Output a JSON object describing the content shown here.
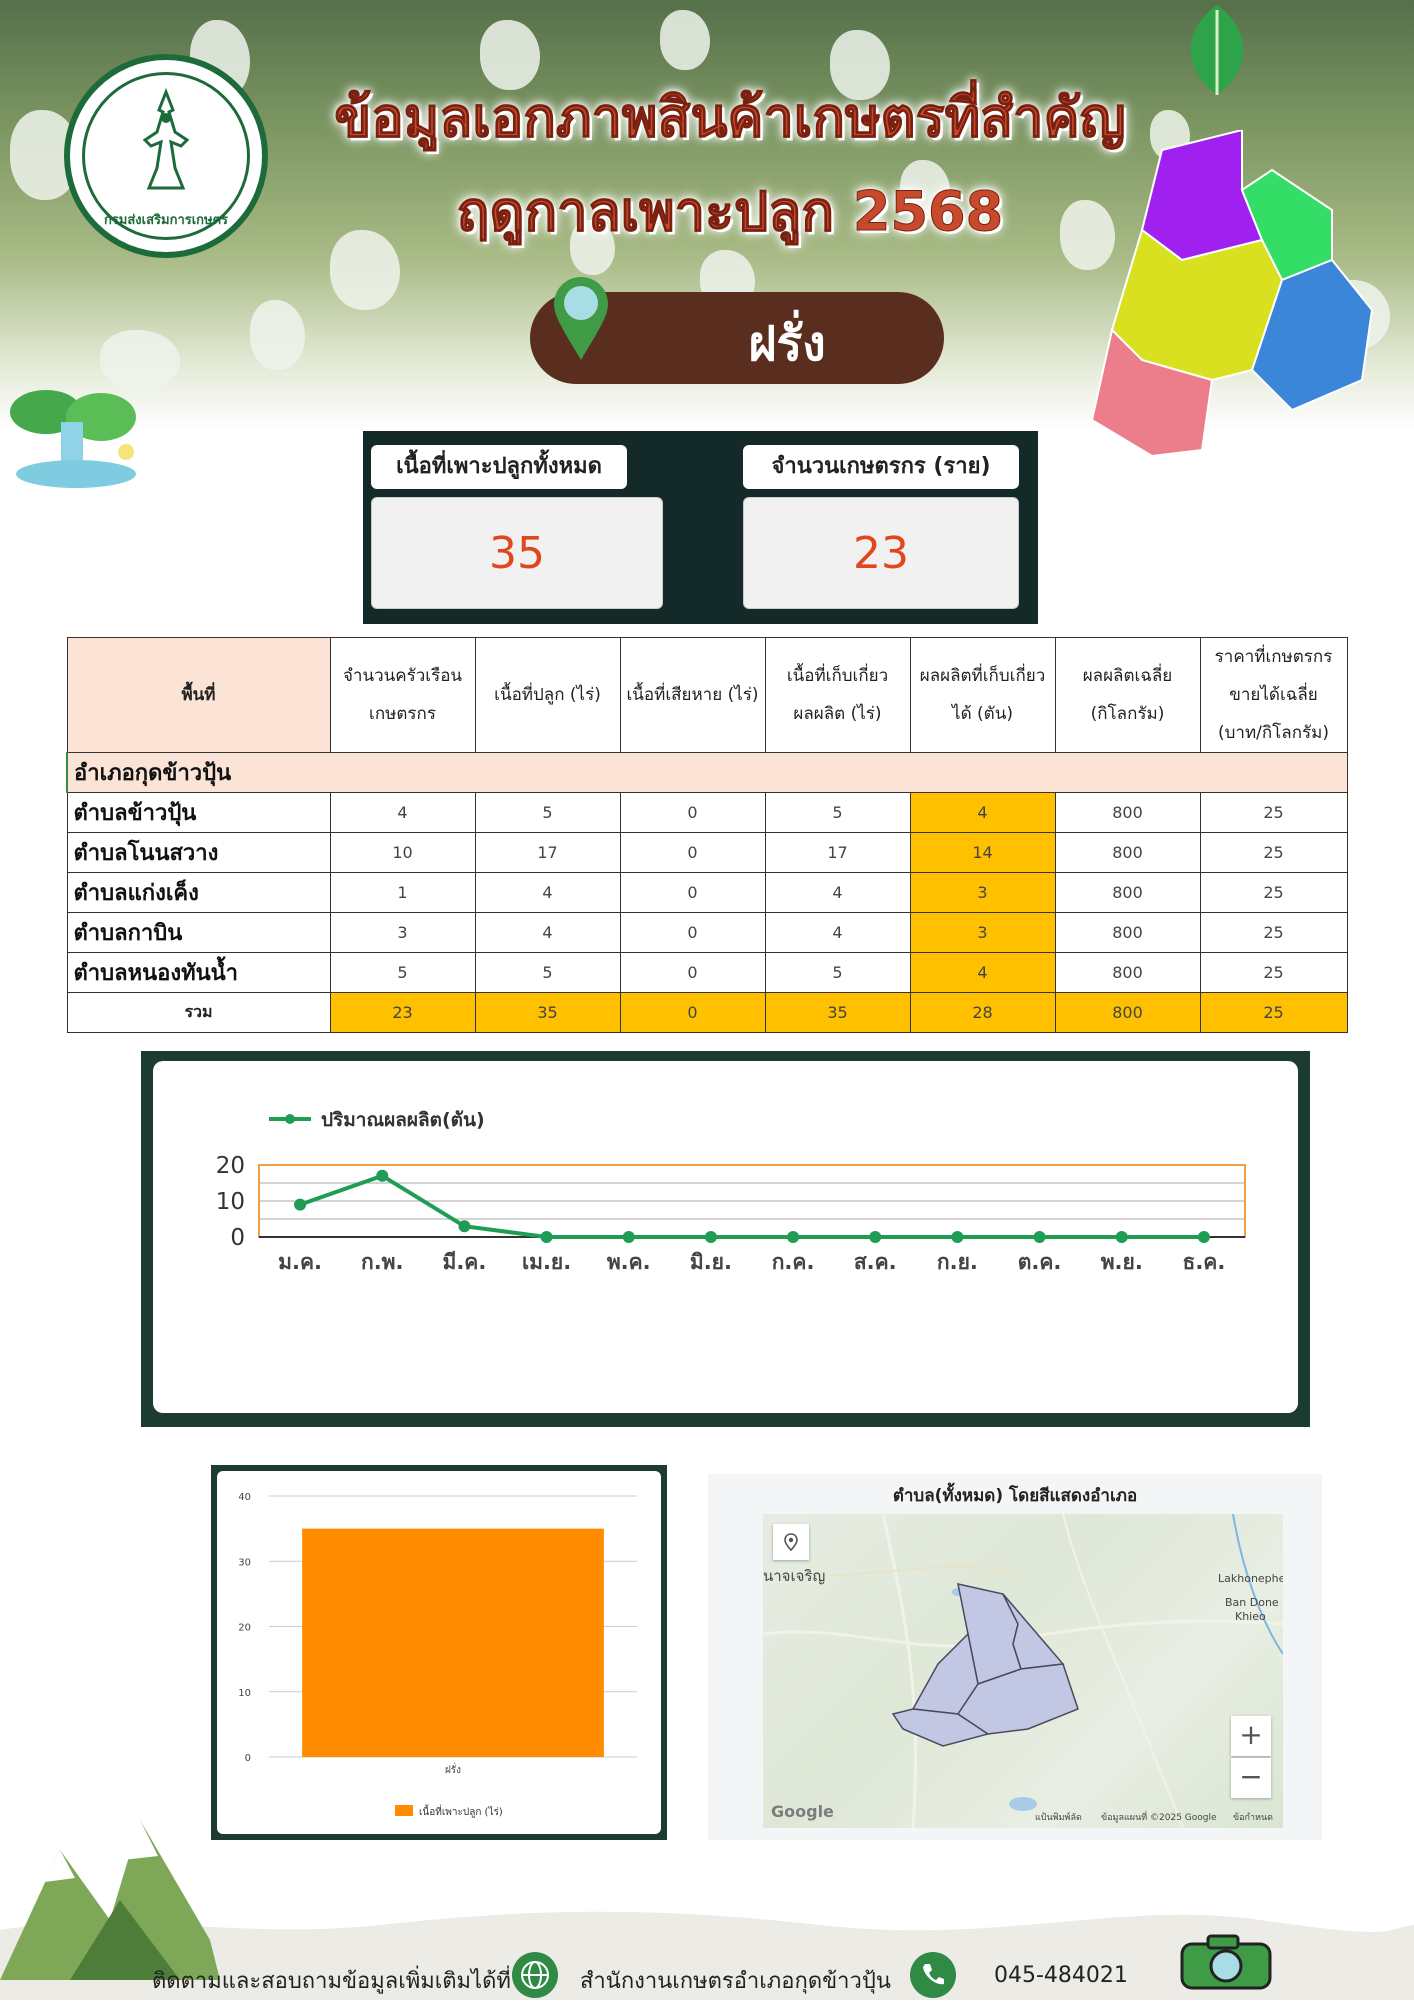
{
  "header": {
    "title_line1": "ข้อมูลเอกภาพสินค้าเกษตรที่สำคัญ",
    "title_line2": "ฤดูกาลเพาะปลูก 2568",
    "crop": "ฝรั่ง",
    "logo_text": "กรมส่งเสริมการเกษตร"
  },
  "stats": {
    "area_label": "เนื้อที่เพาะปลูกทั้งหมด",
    "area_value": "35",
    "farmers_label": "จำนวนเกษตรกร (ราย)",
    "farmers_value": "23"
  },
  "table": {
    "headers": {
      "area": "พื้นที่",
      "households_1": "จำนวนครัวเรือน",
      "households_2": "เกษตรกร",
      "planted": "เนื้อที่ปลูก (ไร่)",
      "damaged": "เนื้อที่เสียหาย (ไร่)",
      "harvest_1": "เนื้อที่เก็บเกี่ยว",
      "harvest_2": "ผลผลิต (ไร่)",
      "yield_1": "ผลผลิตที่เก็บเกี่ยว",
      "yield_2": "ได้ (ตัน)",
      "avg_1": "ผลผลิตเฉลี่ย",
      "avg_2": "(กิโลกรัม)",
      "price_1": "ราคาที่เกษตรกร",
      "price_2": "ขายได้เฉลี่ย",
      "price_3": "(บาท/กิโลกรัม)"
    },
    "district": "อำเภอกุดข้าวปุ้น",
    "rows": [
      {
        "name": "ตำบลข้าวปุ้น",
        "households": "4",
        "planted": "5",
        "damaged": "0",
        "harvest": "5",
        "yield": "4",
        "avg": "800",
        "price": "25"
      },
      {
        "name": "ตำบลโนนสวาง",
        "households": "10",
        "planted": "17",
        "damaged": "0",
        "harvest": "17",
        "yield": "14",
        "avg": "800",
        "price": "25"
      },
      {
        "name": "ตำบลแก่งเค็ง",
        "households": "1",
        "planted": "4",
        "damaged": "0",
        "harvest": "4",
        "yield": "3",
        "avg": "800",
        "price": "25"
      },
      {
        "name": "ตำบลกาบิน",
        "households": "3",
        "planted": "4",
        "damaged": "0",
        "harvest": "4",
        "yield": "3",
        "avg": "800",
        "price": "25"
      },
      {
        "name": "ตำบลหนองทันน้ำ",
        "households": "5",
        "planted": "5",
        "damaged": "0",
        "harvest": "5",
        "yield": "4",
        "avg": "800",
        "price": "25"
      }
    ],
    "total": {
      "name": "รวม",
      "households": "23",
      "planted": "35",
      "damaged": "0",
      "harvest": "35",
      "yield": "28",
      "avg": "800",
      "price": "25"
    }
  },
  "chart_data": [
    {
      "type": "line",
      "series": [
        {
          "name": "ปริมาณผลผลิต(ตัน)",
          "values": [
            9,
            17,
            3,
            0,
            0,
            0,
            0,
            0,
            0,
            0,
            0,
            0
          ]
        }
      ],
      "categories": [
        "ม.ค.",
        "ก.พ.",
        "มี.ค.",
        "เม.ย.",
        "พ.ค.",
        "มิ.ย.",
        "ก.ค.",
        "ส.ค.",
        "ก.ย.",
        "ต.ค.",
        "พ.ย.",
        "ธ.ค."
      ],
      "ylim": [
        0,
        20
      ],
      "yticks": [
        "20",
        "10",
        "0"
      ],
      "legend": "top-left",
      "color": "#1f9d55"
    },
    {
      "type": "bar",
      "categories": [
        "ฝรั่ง"
      ],
      "series": [
        {
          "name": "เนื้อที่เพาะปลูก (ไร่)",
          "values": [
            35
          ]
        }
      ],
      "ylim": [
        0,
        40
      ],
      "yticks": [
        "40",
        "30",
        "20",
        "10",
        "0"
      ],
      "legend": "bottom",
      "color": "#ff8c00"
    }
  ],
  "map": {
    "title": "ตำบล(ทั้งหมด) โดยสีแสดงอำเภอ",
    "labels": {
      "left": "นาจเจริญ",
      "right1": "Lakhonepheng",
      "right2": "Ban Done",
      "right3": "Khieo"
    },
    "zoom_in": "+",
    "zoom_out": "−",
    "google": "Google",
    "attribution_1": "แป้นพิมพ์ลัด",
    "attribution_2": "ข้อมูลแผนที่ ©2025 Google",
    "attribution_3": "ข้อกำหนด",
    "polygon_color": "#c2c8e4"
  },
  "footer": {
    "follow": "ติดตามและสอบถามข้อมูลเพิ่มเติมได้ที่",
    "office": "สำนักงานเกษตรอำเภอกุดข้าวปุ้น",
    "phone": "045-484021",
    "web_icon": "globe-icon",
    "phone_icon": "phone-icon"
  },
  "colors": {
    "title": "#c84a2c",
    "banner": "#5a2e1e",
    "highlight": "#ffc000",
    "header_bg": "#fbe3d6",
    "panel": "#1c3b33",
    "stat_value": "#e2461e"
  }
}
